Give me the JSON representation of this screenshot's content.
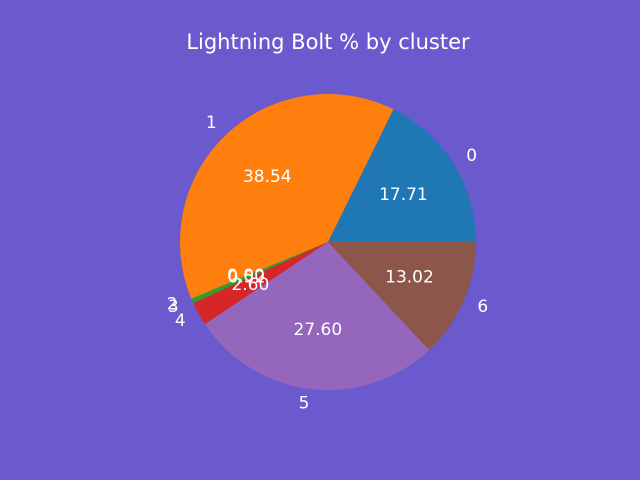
{
  "chart_data": {
    "type": "pie",
    "title": "Lightning Bolt % by cluster",
    "categories": [
      "0",
      "1",
      "2",
      "3",
      "4",
      "5",
      "6"
    ],
    "values": [
      17.71,
      38.54,
      0.0,
      0.52,
      2.6,
      27.6,
      13.02
    ],
    "value_labels": [
      "17.71",
      "38.54",
      "0.00",
      "0.52",
      "2.60",
      "27.60",
      "13.02"
    ],
    "colors": [
      "#1f77b4",
      "#ff7f0e",
      "#2ca02c",
      "#2ca02c",
      "#d62728",
      "#9467bd",
      "#8c564b"
    ],
    "start_angle": 0,
    "direction": "counterclockwise",
    "legend": "none"
  },
  "colors": {
    "background": "#6a5acd",
    "text": "#ffffff"
  }
}
